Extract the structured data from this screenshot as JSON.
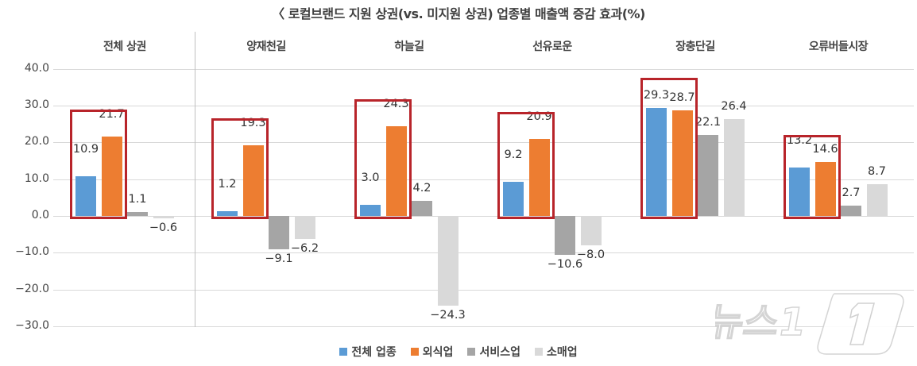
{
  "chart_data": {
    "type": "bar",
    "title": "〈 로컬브랜드 지원 상권(vs. 미지원 상권) 업종별 매출액 증감 효과(%)",
    "categories": [
      "전체 상권",
      "양재천길",
      "하늘길",
      "선유로운",
      "장충단길",
      "오류버들시장"
    ],
    "series": [
      {
        "name": "전체 업종",
        "color": "#5b9bd5",
        "values": [
          10.9,
          1.2,
          3.0,
          9.2,
          29.3,
          13.2
        ]
      },
      {
        "name": "외식업",
        "color": "#ed7d31",
        "values": [
          21.7,
          19.3,
          24.3,
          20.9,
          28.7,
          14.6
        ]
      },
      {
        "name": "서비스업",
        "color": "#a5a5a5",
        "values": [
          1.1,
          -9.1,
          4.2,
          -10.6,
          22.1,
          2.7
        ]
      },
      {
        "name": "소매업",
        "color": "#d9d9d9",
        "values": [
          -0.6,
          -6.2,
          -24.3,
          -8.0,
          26.4,
          8.7
        ]
      }
    ],
    "value_labels": [
      [
        "10.9",
        "21.7",
        "1.1",
        "−0.6"
      ],
      [
        "1.2",
        "19.3",
        "−9.1",
        "−6.2"
      ],
      [
        "3.0",
        "24.3",
        "4.2",
        "−24.3"
      ],
      [
        "9.2",
        "20.9",
        "−10.6",
        "−8.0"
      ],
      [
        "29.3",
        "28.7",
        "22.1",
        "26.4"
      ],
      [
        "13.2",
        "14.6",
        "2.7",
        "8.7"
      ]
    ],
    "yticks": [
      "40.0",
      "30.0",
      "20.0",
      "10.0",
      "0.0",
      "−10.0",
      "−20.0",
      "−30.0"
    ],
    "ylim": [
      -30,
      40
    ],
    "xlabel": "",
    "ylabel": "",
    "grid": true,
    "legend_position": "bottom",
    "annotations": "Red boxes highlight 전체 업종 and 외식업 bars in each group"
  },
  "highlight_color": "#b8242a",
  "watermark": "뉴스1"
}
